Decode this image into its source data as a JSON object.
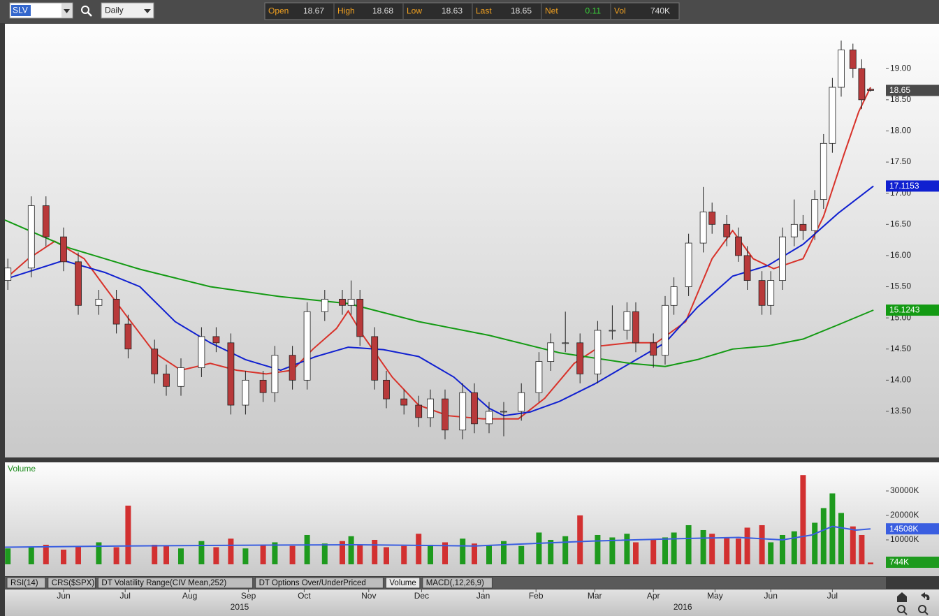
{
  "toolbar": {
    "symbol": "SLV",
    "period": "Daily",
    "quote": [
      {
        "label": "Open",
        "value": "18.67"
      },
      {
        "label": "High",
        "value": "18.68"
      },
      {
        "label": "Low",
        "value": "18.63"
      },
      {
        "label": "Last",
        "value": "18.65"
      },
      {
        "label": "Net",
        "value": "0.11",
        "color": "#3ad13a"
      },
      {
        "label": "Vol",
        "value": "740K"
      }
    ]
  },
  "tabs": [
    "RSI(14)",
    "CRS($SPX)",
    "DT Volatility Range(CIV Mean,252)",
    "DT Options Over/UnderPriced",
    "Volume",
    "MACD(,12,26,9)"
  ],
  "selected_tab": 4,
  "chart_data": [
    {
      "type": "candlestick",
      "x": [
        1,
        9,
        14,
        20,
        25,
        32,
        38,
        42,
        51,
        55,
        60,
        67,
        72,
        77,
        82,
        88,
        92,
        98,
        103,
        109,
        115,
        118,
        121,
        126,
        130,
        136,
        141,
        145,
        150,
        156,
        160,
        165,
        170,
        176,
        182,
        186,
        191,
        196,
        202,
        207,
        212,
        215,
        221,
        225,
        228,
        233,
        238,
        241,
        246,
        250,
        253,
        258,
        261,
        265,
        269,
        272,
        276,
        279,
        282,
        285,
        289,
        292,
        295
      ],
      "open": [
        15.6,
        15.8,
        16.8,
        16.3,
        15.9,
        15.2,
        15.3,
        14.9,
        14.5,
        14.1,
        13.9,
        14.2,
        14.7,
        14.6,
        13.6,
        14.0,
        13.8,
        14.4,
        14.0,
        15.1,
        15.3,
        15.2,
        15.3,
        14.7,
        14.0,
        13.7,
        13.6,
        13.4,
        13.7,
        13.2,
        13.8,
        13.3,
        13.5,
        13.5,
        13.8,
        14.3,
        14.6,
        14.6,
        14.1,
        14.8,
        14.8,
        15.1,
        14.6,
        14.4,
        15.2,
        15.5,
        16.2,
        16.7,
        16.5,
        16.3,
        16.0,
        15.6,
        15.2,
        15.6,
        16.3,
        16.5,
        16.4,
        16.9,
        17.8,
        18.7,
        19.3,
        19.0,
        18.67
      ],
      "high": [
        15.95,
        16.95,
        16.95,
        16.45,
        16.05,
        15.45,
        15.45,
        15.05,
        14.65,
        14.25,
        14.35,
        14.85,
        14.85,
        14.75,
        14.15,
        14.15,
        14.55,
        14.55,
        15.25,
        15.45,
        15.45,
        15.6,
        15.45,
        14.85,
        14.15,
        13.85,
        13.75,
        13.85,
        13.85,
        13.95,
        13.95,
        13.65,
        13.65,
        13.95,
        14.45,
        14.75,
        15.1,
        14.75,
        14.95,
        15.2,
        15.25,
        15.25,
        14.75,
        15.35,
        15.65,
        16.35,
        17.1,
        16.85,
        16.65,
        16.45,
        16.15,
        15.75,
        15.75,
        16.45,
        16.9,
        16.65,
        17.05,
        17.95,
        18.85,
        19.45,
        19.4,
        19.15,
        18.68
      ],
      "low": [
        15.45,
        15.65,
        16.15,
        15.75,
        15.05,
        15.05,
        14.75,
        14.35,
        13.95,
        13.75,
        13.75,
        14.05,
        14.45,
        13.45,
        13.45,
        13.65,
        13.65,
        13.85,
        13.85,
        14.95,
        15.05,
        15.05,
        14.55,
        13.85,
        13.55,
        13.45,
        13.25,
        13.25,
        13.05,
        13.05,
        13.15,
        13.15,
        13.1,
        13.35,
        13.65,
        14.15,
        14.45,
        13.95,
        13.95,
        14.65,
        14.65,
        14.45,
        14.2,
        14.25,
        15.05,
        15.35,
        16.05,
        16.35,
        16.15,
        15.9,
        15.45,
        15.05,
        15.05,
        15.45,
        16.15,
        16.25,
        16.25,
        16.75,
        17.65,
        18.55,
        18.85,
        18.35,
        18.63
      ],
      "close": [
        15.8,
        16.8,
        16.3,
        15.9,
        15.2,
        15.3,
        14.9,
        14.5,
        14.1,
        13.9,
        14.2,
        14.7,
        14.6,
        13.6,
        14.0,
        13.8,
        14.4,
        14.0,
        15.1,
        15.3,
        15.2,
        15.3,
        14.7,
        14.0,
        13.7,
        13.6,
        13.4,
        13.7,
        13.2,
        13.8,
        13.3,
        13.5,
        13.5,
        13.8,
        14.3,
        14.6,
        14.6,
        14.1,
        14.8,
        14.8,
        15.1,
        14.6,
        14.4,
        15.2,
        15.5,
        16.2,
        16.7,
        16.5,
        16.3,
        16.0,
        15.6,
        15.2,
        15.6,
        16.3,
        16.5,
        16.4,
        16.9,
        17.8,
        18.7,
        19.3,
        19.0,
        18.5,
        18.65
      ],
      "up_color": "#ffffff",
      "down_color": "#b8393a",
      "last_box_color": "#4a4a4a",
      "xlim": [
        0,
        300
      ],
      "xticks": [
        {
          "value": 20,
          "label": "Jun"
        },
        {
          "value": 41,
          "label": "Jul"
        },
        {
          "value": 63,
          "label": "Aug"
        },
        {
          "value": 83,
          "label": "Sep"
        },
        {
          "value": 102,
          "label": "Oct"
        },
        {
          "value": 124,
          "label": "Nov"
        },
        {
          "value": 142,
          "label": "Dec"
        },
        {
          "value": 163,
          "label": "Jan"
        },
        {
          "value": 181,
          "label": "Feb"
        },
        {
          "value": 201,
          "label": "Mar"
        },
        {
          "value": 221,
          "label": "Apr"
        },
        {
          "value": 242,
          "label": "May"
        },
        {
          "value": 261,
          "label": "Jun"
        },
        {
          "value": 282,
          "label": "Jul"
        }
      ],
      "year_ticks": [
        {
          "value": 80,
          "label": "2015"
        },
        {
          "value": 231,
          "label": "2016"
        }
      ],
      "ylim": [
        12.76,
        19.72
      ],
      "yticks": [
        {
          "value": 13.5,
          "label": "13.50"
        },
        {
          "value": 14,
          "label": "14.00"
        },
        {
          "value": 14.5,
          "label": "14.50"
        },
        {
          "value": 15,
          "label": "15.00"
        },
        {
          "value": 15.5,
          "label": "15.50"
        },
        {
          "value": 16,
          "label": "16.00"
        },
        {
          "value": 16.5,
          "label": "16.50"
        },
        {
          "value": 17,
          "label": "17.00"
        },
        {
          "value": 17.5,
          "label": "17.50"
        },
        {
          "value": 18,
          "label": "18.00"
        },
        {
          "value": 18.5,
          "label": "18.50"
        },
        {
          "value": 19,
          "label": "19.00"
        }
      ],
      "lines": [
        {
          "color": "#d8322a",
          "x": [
            0,
            8,
            17,
            27,
            34,
            41,
            51,
            60,
            70,
            79,
            89,
            98,
            105,
            113,
            117,
            122,
            132,
            141,
            151,
            163,
            175,
            184,
            194,
            203,
            213,
            222,
            232,
            241,
            248,
            255,
            262,
            272,
            279,
            286,
            291,
            295
          ],
          "values": [
            15.62,
            15.95,
            16.23,
            15.95,
            15.5,
            15.06,
            14.44,
            14.16,
            14.27,
            14.16,
            14.1,
            14.16,
            14.5,
            14.83,
            15.11,
            14.72,
            14.05,
            13.6,
            13.43,
            13.38,
            13.38,
            13.71,
            14.27,
            14.55,
            14.6,
            14.6,
            14.94,
            15.95,
            16.4,
            15.95,
            15.79,
            15.95,
            16.63,
            17.63,
            18.31,
            18.7
          ],
          "show_last": false
        },
        {
          "color": "#1020d0",
          "x": [
            0,
            20,
            34,
            46,
            58,
            70,
            82,
            94,
            106,
            117,
            129,
            141,
            153,
            165,
            170,
            179,
            189,
            201,
            213,
            225,
            236,
            248,
            260,
            272,
            284,
            296
          ],
          "values": [
            15.62,
            15.92,
            15.73,
            15.5,
            14.94,
            14.6,
            14.33,
            14.16,
            14.38,
            14.53,
            14.49,
            14.38,
            14.05,
            13.55,
            13.43,
            13.49,
            13.66,
            13.94,
            14.27,
            14.6,
            15.17,
            15.67,
            15.84,
            16.18,
            16.68,
            17.1153
          ],
          "show_last": true
        },
        {
          "color": "#139a13",
          "x": [
            0,
            22,
            46,
            70,
            94,
            117,
            141,
            165,
            189,
            213,
            225,
            236,
            248,
            260,
            272,
            284,
            296
          ],
          "values": [
            16.57,
            16.12,
            15.78,
            15.5,
            15.34,
            15.23,
            14.94,
            14.72,
            14.44,
            14.27,
            14.22,
            14.33,
            14.5,
            14.55,
            14.66,
            14.89,
            15.1243
          ],
          "show_last": true
        }
      ]
    },
    {
      "type": "bar",
      "title": "Volume",
      "x": [
        1,
        9,
        14,
        20,
        25,
        32,
        38,
        42,
        51,
        55,
        60,
        67,
        72,
        77,
        82,
        88,
        92,
        98,
        103,
        109,
        115,
        118,
        121,
        126,
        130,
        136,
        141,
        145,
        150,
        156,
        160,
        165,
        170,
        176,
        182,
        186,
        191,
        196,
        202,
        207,
        212,
        215,
        221,
        225,
        228,
        233,
        238,
        241,
        246,
        250,
        253,
        258,
        261,
        265,
        269,
        272,
        276,
        279,
        282,
        285,
        289,
        292,
        295
      ],
      "values": [
        6500,
        7000,
        8000,
        6000,
        7500,
        9000,
        7000,
        24000,
        8000,
        7500,
        6500,
        9500,
        7000,
        10500,
        6500,
        8000,
        9000,
        7500,
        12000,
        8500,
        9500,
        11500,
        8000,
        10000,
        7000,
        7500,
        12500,
        8000,
        9000,
        10500,
        8500,
        8000,
        9500,
        7500,
        13000,
        10000,
        11500,
        20000,
        12000,
        11000,
        12500,
        9000,
        10000,
        11000,
        13000,
        16000,
        14000,
        12500,
        11000,
        10500,
        15000,
        16000,
        9000,
        12000,
        13500,
        36500,
        17000,
        23000,
        29000,
        21000,
        15500,
        12000,
        744
      ],
      "last_label": "744K",
      "up_color": "#1e9a1e",
      "down_color": "#d23030",
      "xlim": [
        0,
        300
      ],
      "ylim": [
        0,
        41700
      ],
      "yticks": [
        {
          "value": 10000,
          "label": "10000K"
        },
        {
          "value": 20000,
          "label": "20000K"
        },
        {
          "value": 30000,
          "label": "30000K"
        }
      ],
      "lines": [
        {
          "color": "#3a5ee0",
          "x": [
            0,
            40,
            80,
            120,
            160,
            200,
            230,
            250,
            265,
            275,
            282,
            290,
            295
          ],
          "values": [
            7000,
            7500,
            7800,
            8000,
            7500,
            9500,
            10500,
            11000,
            10000,
            12000,
            15500,
            14000,
            14508
          ],
          "last_label": "14508K"
        }
      ]
    }
  ]
}
